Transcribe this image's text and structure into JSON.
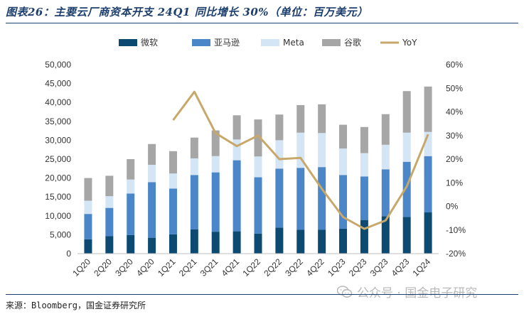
{
  "title": "图表26：主要云厂商资本开支 24Q1 同比增长 30%（单位：百万美元）",
  "source": "来源：Bloomberg，国金证券研究所",
  "watermark": "公众号 · 国金电子研究",
  "colors": {
    "微软": "#0d4a72",
    "亚马逊": "#4a86c8",
    "Meta": "#d4e5f5",
    "谷歌": "#a6a6a6",
    "YoY": "#c8a86a"
  },
  "chart_data": {
    "type": "bar",
    "stacked": true,
    "categories": [
      "1Q20",
      "2Q20",
      "3Q20",
      "4Q20",
      "1Q21",
      "2Q21",
      "3Q21",
      "4Q21",
      "1Q22",
      "2Q22",
      "3Q22",
      "4Q22",
      "1Q23",
      "2Q23",
      "3Q23",
      "4Q23",
      "1Q24"
    ],
    "series": [
      {
        "name": "微软",
        "values": [
          3800,
          4600,
          4900,
          4200,
          5100,
          6400,
          5800,
          5900,
          5300,
          6900,
          6300,
          6300,
          6600,
          8900,
          9900,
          9700,
          10900
        ]
      },
      {
        "name": "亚马逊",
        "values": [
          6700,
          7500,
          11000,
          14700,
          12100,
          14400,
          15700,
          18800,
          14900,
          15600,
          16400,
          16600,
          14200,
          11500,
          12400,
          14600,
          14900
        ]
      },
      {
        "name": "Meta",
        "values": [
          3500,
          3100,
          3700,
          4600,
          4000,
          4400,
          4300,
          5500,
          5500,
          7500,
          9300,
          9000,
          7000,
          6200,
          6500,
          7700,
          6400
        ]
      },
      {
        "name": "谷歌",
        "values": [
          6000,
          5400,
          5400,
          5500,
          5900,
          5500,
          6800,
          6400,
          9800,
          6800,
          7300,
          7600,
          6300,
          6900,
          8100,
          11000,
          12000
        ]
      }
    ],
    "line_series": {
      "name": "YoY",
      "axis": "right",
      "start_category": "1Q21",
      "values": [
        36.5,
        48.5,
        31,
        25.5,
        30,
        20,
        20.5,
        7.5,
        -4.5,
        -9.5,
        -6,
        8.5,
        30.5
      ]
    },
    "ylim": [
      0,
      50000
    ],
    "yticks": [
      "0",
      "5,000",
      "10,000",
      "15,000",
      "20,000",
      "25,000",
      "30,000",
      "35,000",
      "40,000",
      "45,000",
      "50,000"
    ],
    "y2lim": [
      -20,
      60
    ],
    "y2ticks": [
      "-20%",
      "-10%",
      "0%",
      "10%",
      "20%",
      "30%",
      "40%",
      "50%",
      "60%"
    ],
    "legend": [
      "微软",
      "亚马逊",
      "Meta",
      "谷歌",
      "YoY"
    ],
    "legend_position": "top",
    "grid": false
  }
}
